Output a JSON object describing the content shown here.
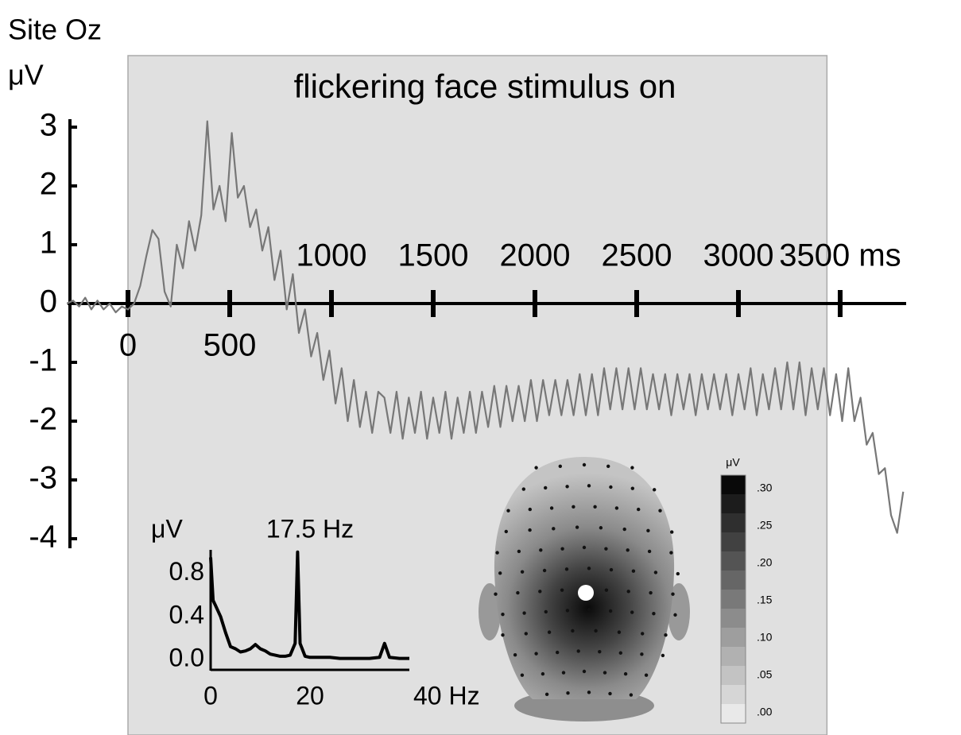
{
  "chart_data": [
    {
      "type": "line",
      "title": "Site Oz",
      "y_label": "μV",
      "annotation": "flickering face stimulus on",
      "shaded": [
        0,
        3435
      ],
      "x": [
        -300,
        -270,
        -240,
        -210,
        -180,
        -150,
        -120,
        -90,
        -60,
        -30,
        0,
        30,
        60,
        90,
        120,
        150,
        180,
        210,
        240,
        270,
        300,
        330,
        360,
        390,
        420,
        450,
        480,
        510,
        540,
        570,
        600,
        630,
        660,
        690,
        720,
        750,
        780,
        810,
        840,
        870,
        900,
        930,
        960,
        990,
        1020,
        1050,
        1080,
        1110,
        1140,
        1170,
        1200,
        1230,
        1260,
        1290,
        1320,
        1350,
        1380,
        1410,
        1440,
        1470,
        1500,
        1530,
        1560,
        1590,
        1620,
        1650,
        1680,
        1710,
        1740,
        1770,
        1800,
        1830,
        1860,
        1890,
        1920,
        1950,
        1980,
        2010,
        2040,
        2070,
        2100,
        2130,
        2160,
        2190,
        2220,
        2250,
        2280,
        2310,
        2340,
        2370,
        2400,
        2430,
        2460,
        2490,
        2520,
        2550,
        2580,
        2610,
        2640,
        2670,
        2700,
        2730,
        2760,
        2790,
        2820,
        2850,
        2880,
        2910,
        2940,
        2970,
        3000,
        3030,
        3060,
        3090,
        3120,
        3150,
        3180,
        3210,
        3240,
        3270,
        3300,
        3330,
        3360,
        3390,
        3420,
        3450,
        3480,
        3510,
        3540,
        3570,
        3600,
        3630,
        3660,
        3690,
        3720,
        3750,
        3780,
        3810
      ],
      "values": [
        0.0,
        0.05,
        -0.05,
        0.1,
        -0.1,
        0.05,
        -0.1,
        0.0,
        -0.15,
        -0.05,
        -0.1,
        0.0,
        0.3,
        0.8,
        1.25,
        1.1,
        0.2,
        -0.05,
        1.0,
        0.6,
        1.4,
        0.9,
        1.5,
        3.1,
        1.6,
        2.0,
        1.4,
        2.9,
        1.8,
        2.0,
        1.3,
        1.6,
        0.9,
        1.3,
        0.4,
        0.9,
        -0.1,
        0.5,
        -0.5,
        -0.1,
        -0.9,
        -0.5,
        -1.3,
        -0.8,
        -1.7,
        -1.1,
        -2.0,
        -1.3,
        -2.1,
        -1.5,
        -2.2,
        -1.5,
        -1.6,
        -2.2,
        -1.5,
        -2.3,
        -1.6,
        -2.2,
        -1.5,
        -2.3,
        -1.6,
        -2.2,
        -1.5,
        -2.3,
        -1.6,
        -2.2,
        -1.5,
        -2.2,
        -1.5,
        -2.1,
        -1.4,
        -2.1,
        -1.4,
        -2.0,
        -1.4,
        -2.0,
        -1.3,
        -2.0,
        -1.3,
        -1.9,
        -1.3,
        -1.9,
        -1.3,
        -1.9,
        -1.2,
        -1.9,
        -1.2,
        -1.9,
        -1.1,
        -1.8,
        -1.1,
        -1.8,
        -1.1,
        -1.8,
        -1.1,
        -1.8,
        -1.2,
        -1.8,
        -1.2,
        -1.9,
        -1.2,
        -1.8,
        -1.2,
        -1.9,
        -1.2,
        -1.8,
        -1.2,
        -1.8,
        -1.2,
        -1.9,
        -1.2,
        -1.8,
        -1.1,
        -1.9,
        -1.2,
        -1.8,
        -1.1,
        -1.8,
        -1.0,
        -1.8,
        -1.0,
        -1.9,
        -1.1,
        -1.8,
        -1.1,
        -1.9,
        -1.2,
        -2.0,
        -1.1,
        -2.0,
        -1.6,
        -2.4,
        -2.2,
        -2.9,
        -2.8,
        -3.6,
        -3.9,
        -3.2
      ],
      "color": "#777777",
      "xlim": [
        -300,
        3820
      ],
      "ylim": [
        -4,
        3
      ],
      "xticks": [
        0,
        500,
        1000,
        1500,
        2000,
        2500,
        3000,
        {
          "value": 3500,
          "label": "3500 ms"
        }
      ],
      "yticks": [
        -4,
        -3,
        -2,
        -1,
        0,
        1,
        2,
        3
      ]
    },
    {
      "type": "line",
      "y_label": "μV",
      "annotation": "17.5 Hz",
      "x": [
        0,
        0.5,
        1,
        2,
        3,
        4,
        5,
        6,
        7,
        8,
        9,
        10,
        11,
        12,
        13,
        14,
        15,
        16,
        17,
        17.5,
        18,
        19,
        20,
        22,
        24,
        26,
        28,
        30,
        32,
        34,
        35,
        36,
        38,
        40
      ],
      "values": [
        0.95,
        0.55,
        0.5,
        0.4,
        0.25,
        0.12,
        0.1,
        0.07,
        0.08,
        0.1,
        0.14,
        0.1,
        0.08,
        0.05,
        0.04,
        0.03,
        0.03,
        0.04,
        0.15,
        1.0,
        0.15,
        0.03,
        0.02,
        0.02,
        0.02,
        0.01,
        0.01,
        0.01,
        0.01,
        0.02,
        0.15,
        0.02,
        0.01,
        0.01
      ],
      "color": "#000000",
      "xlim": [
        0,
        40
      ],
      "ylim": [
        0,
        1.02
      ],
      "xticks": [
        0,
        20,
        {
          "value": 40,
          "label": "40 Hz"
        }
      ],
      "yticks": [
        {
          "value": 0,
          "label": "0.0"
        },
        {
          "value": 0.4,
          "label": "0.4"
        },
        {
          "value": 0.8,
          "label": "0.8"
        }
      ]
    },
    {
      "type": "colorbar",
      "title": "μV",
      "clim": [
        0,
        0.3
      ],
      "colors": [
        "#f2f2f2",
        "#000000"
      ],
      "ticks": [
        {
          "value": 0,
          "label": ".00"
        },
        {
          "value": 0.05,
          "label": ".05"
        },
        {
          "value": 0.1,
          "label": ".10"
        },
        {
          "value": 0.15,
          "label": ".15"
        },
        {
          "value": 0.2,
          "label": ".20"
        },
        {
          "value": 0.25,
          "label": ".25"
        },
        {
          "value": 0.3,
          "label": ".30"
        }
      ]
    }
  ]
}
